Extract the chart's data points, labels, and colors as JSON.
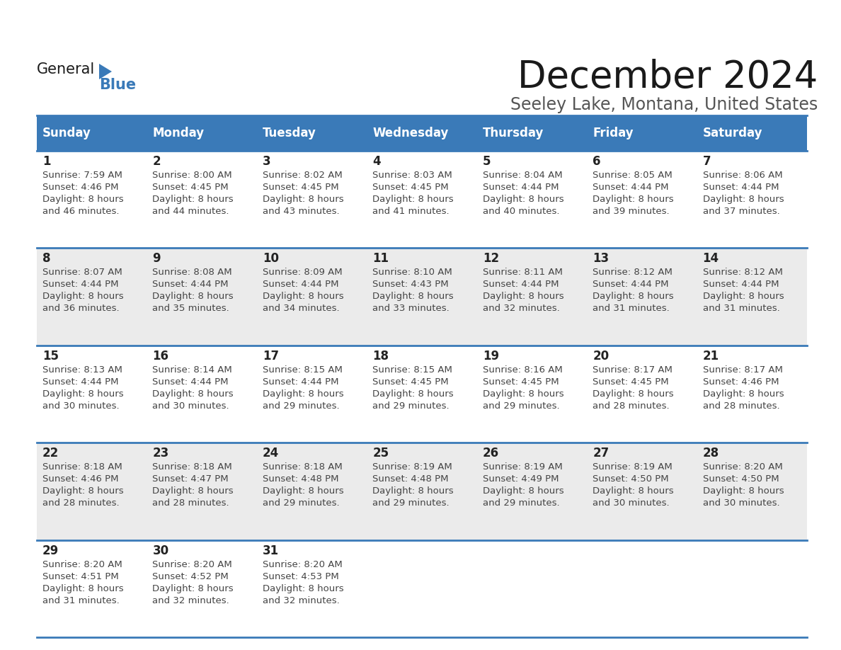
{
  "title": "December 2024",
  "subtitle": "Seeley Lake, Montana, United States",
  "days_of_week": [
    "Sunday",
    "Monday",
    "Tuesday",
    "Wednesday",
    "Thursday",
    "Friday",
    "Saturday"
  ],
  "header_bg": "#3A7AB8",
  "header_text": "#FFFFFF",
  "cell_bg_odd": "#FFFFFF",
  "cell_bg_even": "#EBEBEB",
  "row_line_color": "#3A7AB8",
  "text_color": "#444444",
  "day_num_color": "#222222",
  "calendar_data": [
    [
      {
        "day": 1,
        "sunrise": "7:59 AM",
        "sunset": "4:46 PM",
        "daylight": "8 hours and 46 minutes."
      },
      {
        "day": 2,
        "sunrise": "8:00 AM",
        "sunset": "4:45 PM",
        "daylight": "8 hours and 44 minutes."
      },
      {
        "day": 3,
        "sunrise": "8:02 AM",
        "sunset": "4:45 PM",
        "daylight": "8 hours and 43 minutes."
      },
      {
        "day": 4,
        "sunrise": "8:03 AM",
        "sunset": "4:45 PM",
        "daylight": "8 hours and 41 minutes."
      },
      {
        "day": 5,
        "sunrise": "8:04 AM",
        "sunset": "4:44 PM",
        "daylight": "8 hours and 40 minutes."
      },
      {
        "day": 6,
        "sunrise": "8:05 AM",
        "sunset": "4:44 PM",
        "daylight": "8 hours and 39 minutes."
      },
      {
        "day": 7,
        "sunrise": "8:06 AM",
        "sunset": "4:44 PM",
        "daylight": "8 hours and 37 minutes."
      }
    ],
    [
      {
        "day": 8,
        "sunrise": "8:07 AM",
        "sunset": "4:44 PM",
        "daylight": "8 hours and 36 minutes."
      },
      {
        "day": 9,
        "sunrise": "8:08 AM",
        "sunset": "4:44 PM",
        "daylight": "8 hours and 35 minutes."
      },
      {
        "day": 10,
        "sunrise": "8:09 AM",
        "sunset": "4:44 PM",
        "daylight": "8 hours and 34 minutes."
      },
      {
        "day": 11,
        "sunrise": "8:10 AM",
        "sunset": "4:43 PM",
        "daylight": "8 hours and 33 minutes."
      },
      {
        "day": 12,
        "sunrise": "8:11 AM",
        "sunset": "4:44 PM",
        "daylight": "8 hours and 32 minutes."
      },
      {
        "day": 13,
        "sunrise": "8:12 AM",
        "sunset": "4:44 PM",
        "daylight": "8 hours and 31 minutes."
      },
      {
        "day": 14,
        "sunrise": "8:12 AM",
        "sunset": "4:44 PM",
        "daylight": "8 hours and 31 minutes."
      }
    ],
    [
      {
        "day": 15,
        "sunrise": "8:13 AM",
        "sunset": "4:44 PM",
        "daylight": "8 hours and 30 minutes."
      },
      {
        "day": 16,
        "sunrise": "8:14 AM",
        "sunset": "4:44 PM",
        "daylight": "8 hours and 30 minutes."
      },
      {
        "day": 17,
        "sunrise": "8:15 AM",
        "sunset": "4:44 PM",
        "daylight": "8 hours and 29 minutes."
      },
      {
        "day": 18,
        "sunrise": "8:15 AM",
        "sunset": "4:45 PM",
        "daylight": "8 hours and 29 minutes."
      },
      {
        "day": 19,
        "sunrise": "8:16 AM",
        "sunset": "4:45 PM",
        "daylight": "8 hours and 29 minutes."
      },
      {
        "day": 20,
        "sunrise": "8:17 AM",
        "sunset": "4:45 PM",
        "daylight": "8 hours and 28 minutes."
      },
      {
        "day": 21,
        "sunrise": "8:17 AM",
        "sunset": "4:46 PM",
        "daylight": "8 hours and 28 minutes."
      }
    ],
    [
      {
        "day": 22,
        "sunrise": "8:18 AM",
        "sunset": "4:46 PM",
        "daylight": "8 hours and 28 minutes."
      },
      {
        "day": 23,
        "sunrise": "8:18 AM",
        "sunset": "4:47 PM",
        "daylight": "8 hours and 28 minutes."
      },
      {
        "day": 24,
        "sunrise": "8:18 AM",
        "sunset": "4:48 PM",
        "daylight": "8 hours and 29 minutes."
      },
      {
        "day": 25,
        "sunrise": "8:19 AM",
        "sunset": "4:48 PM",
        "daylight": "8 hours and 29 minutes."
      },
      {
        "day": 26,
        "sunrise": "8:19 AM",
        "sunset": "4:49 PM",
        "daylight": "8 hours and 29 minutes."
      },
      {
        "day": 27,
        "sunrise": "8:19 AM",
        "sunset": "4:50 PM",
        "daylight": "8 hours and 30 minutes."
      },
      {
        "day": 28,
        "sunrise": "8:20 AM",
        "sunset": "4:50 PM",
        "daylight": "8 hours and 30 minutes."
      }
    ],
    [
      {
        "day": 29,
        "sunrise": "8:20 AM",
        "sunset": "4:51 PM",
        "daylight": "8 hours and 31 minutes."
      },
      {
        "day": 30,
        "sunrise": "8:20 AM",
        "sunset": "4:52 PM",
        "daylight": "8 hours and 32 minutes."
      },
      {
        "day": 31,
        "sunrise": "8:20 AM",
        "sunset": "4:53 PM",
        "daylight": "8 hours and 32 minutes."
      },
      null,
      null,
      null,
      null
    ]
  ],
  "title_fontsize": 38,
  "subtitle_fontsize": 17,
  "header_fontsize": 12,
  "day_num_fontsize": 12,
  "cell_fontsize": 9.5,
  "logo_general_fontsize": 15,
  "logo_blue_fontsize": 15
}
